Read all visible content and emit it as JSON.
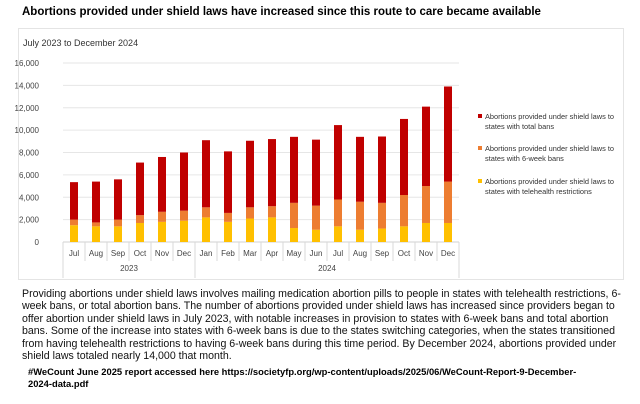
{
  "title": "Abortions provided under shield laws have increased since this route to care became available",
  "paragraph": "Providing abortions under shield laws involves mailing medication abortion pills to people in states with telehealth restrictions, 6-week bans, or total abortion bans. The number of abortions provided under shield laws has increased since providers began to offer abortion under shield laws in July 2023, with notable increases in provision to states with 6-week bans and total abortion bans. Some of the increase into states with 6-week bans is due to the states switching categories, when the states transitioned from having telehealth restrictions to having 6-week bans during this time period. By December 2024, abortions provided under shield laws totaled nearly 14,000 that month.",
  "source": "#WeCount June 2025 report accessed here https://societyfp.org/wp-content/uploads/2025/06/WeCount-Report-9-December-2024-data.pdf",
  "chart_data": {
    "type": "bar",
    "stacked": true,
    "subtitle": "July 2023 to December 2024",
    "categories": [
      "Jul",
      "Aug",
      "Sep",
      "Oct",
      "Nov",
      "Dec",
      "Jan",
      "Feb",
      "Mar",
      "Apr",
      "May",
      "Jun",
      "Jul",
      "Aug",
      "Sep",
      "Oct",
      "Nov",
      "Dec"
    ],
    "year_groups": [
      {
        "label": "2023",
        "count": 6
      },
      {
        "label": "2024",
        "count": 12
      }
    ],
    "ylim": [
      0,
      16000
    ],
    "yticks": [
      0,
      2000,
      4000,
      6000,
      8000,
      10000,
      12000,
      14000,
      16000
    ],
    "ytick_labels": [
      "0",
      "2,000",
      "4,000",
      "6,000",
      "8,000",
      "10,000",
      "12,000",
      "14,000",
      "16,000"
    ],
    "grid": true,
    "legend_position": "right",
    "series": [
      {
        "name": "Abortions provided under shield laws to states with telehealth restrictions",
        "color": "#ffc000",
        "values": [
          1500,
          1400,
          1400,
          1700,
          1800,
          1900,
          2200,
          1800,
          2100,
          2200,
          1250,
          1100,
          1400,
          1100,
          1200,
          1400,
          1700,
          1700
        ]
      },
      {
        "name": "Abortions provided under shield laws to states with 6-week bans",
        "color": "#ed7d31",
        "values": [
          500,
          350,
          600,
          700,
          900,
          900,
          900,
          800,
          1000,
          1000,
          2250,
          2150,
          2400,
          2500,
          2300,
          2800,
          3300,
          3700
        ]
      },
      {
        "name": "Abortions provided under shield laws to states with total bans",
        "color": "#c00000",
        "values": [
          3350,
          3650,
          3600,
          4700,
          4900,
          5200,
          6000,
          5500,
          5950,
          6000,
          5900,
          5900,
          6650,
          5800,
          5930,
          6800,
          7100,
          8500
        ]
      }
    ],
    "legend_order": [
      2,
      1,
      0
    ]
  }
}
